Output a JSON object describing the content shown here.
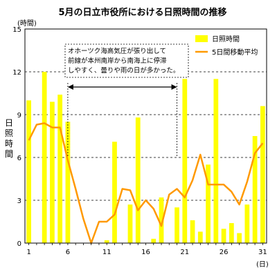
{
  "chart_data": {
    "type": "bar",
    "title": "5月の日立市役所における日照時間の推移",
    "ylabel": "日照時間",
    "y_unit": "(時間)",
    "x_unit": "(日)",
    "ylim": [
      0,
      15
    ],
    "yticks": [
      0,
      3,
      6,
      9,
      12,
      15
    ],
    "xticks": [
      1,
      6,
      11,
      16,
      21,
      26,
      31
    ],
    "grid": "dashed horizontal",
    "legend_position": "top-right",
    "colors": {
      "bars": "#ffff00",
      "line": "#ff9900",
      "grid": "#000000"
    },
    "days": [
      1,
      2,
      3,
      4,
      5,
      6,
      7,
      8,
      9,
      10,
      11,
      12,
      13,
      14,
      15,
      16,
      17,
      18,
      19,
      20,
      21,
      22,
      23,
      24,
      25,
      26,
      27,
      28,
      29,
      30,
      31
    ],
    "series": [
      {
        "name": "日照時間",
        "type": "bar",
        "values": [
          10.0,
          0.0,
          12.0,
          9.9,
          10.4,
          8.5,
          0.0,
          0.0,
          0.0,
          0.0,
          0.2,
          7.1,
          0.0,
          2.7,
          8.8,
          0.0,
          0.3,
          3.2,
          0.0,
          2.5,
          11.5,
          1.6,
          0.8,
          5.5,
          11.5,
          1.0,
          1.4,
          0.7,
          2.7,
          7.5,
          9.6
        ]
      },
      {
        "name": "5日間移動平均",
        "type": "line",
        "values": [
          7.2,
          8.3,
          8.4,
          8.1,
          8.1,
          5.8,
          3.8,
          1.7,
          0.0,
          1.5,
          1.5,
          2.0,
          3.8,
          3.7,
          2.3,
          3.0,
          2.4,
          1.2,
          3.4,
          3.8,
          3.2,
          4.4,
          6.2,
          4.1,
          4.1,
          4.1,
          3.6,
          2.7,
          4.3,
          6.3,
          7.0
        ]
      }
    ],
    "annotation": {
      "lines": [
        "オホーツク海高気圧が張り出して",
        "前線が本州南岸から南海上に停滞",
        "しやすく、曇りや雨の日が多かった。"
      ],
      "span": [
        6,
        20
      ]
    }
  }
}
